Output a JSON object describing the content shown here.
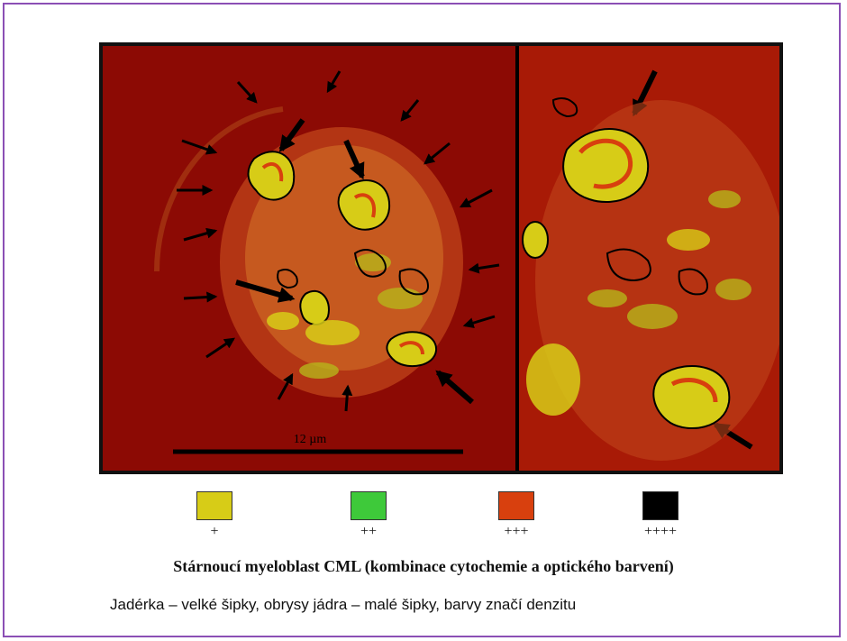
{
  "figure": {
    "scale_bar_label": "12 µm",
    "title": "Stárnoucí myeloblast CML (kombinace cytochemie a optického barvení)",
    "subtitle": "Jadérka – velké šipky, obrysy jádra – malé šipky, barvy značí denzitu"
  },
  "legend": [
    {
      "label": "+",
      "color": "#d7cc17"
    },
    {
      "label": "++",
      "color": "#3ec93a"
    },
    {
      "label": "+++",
      "color": "#d8400e"
    },
    {
      "label": "++++",
      "color": "#000000"
    }
  ],
  "colors": {
    "background": "#8c0a04",
    "frame": "#8b4fb5"
  }
}
